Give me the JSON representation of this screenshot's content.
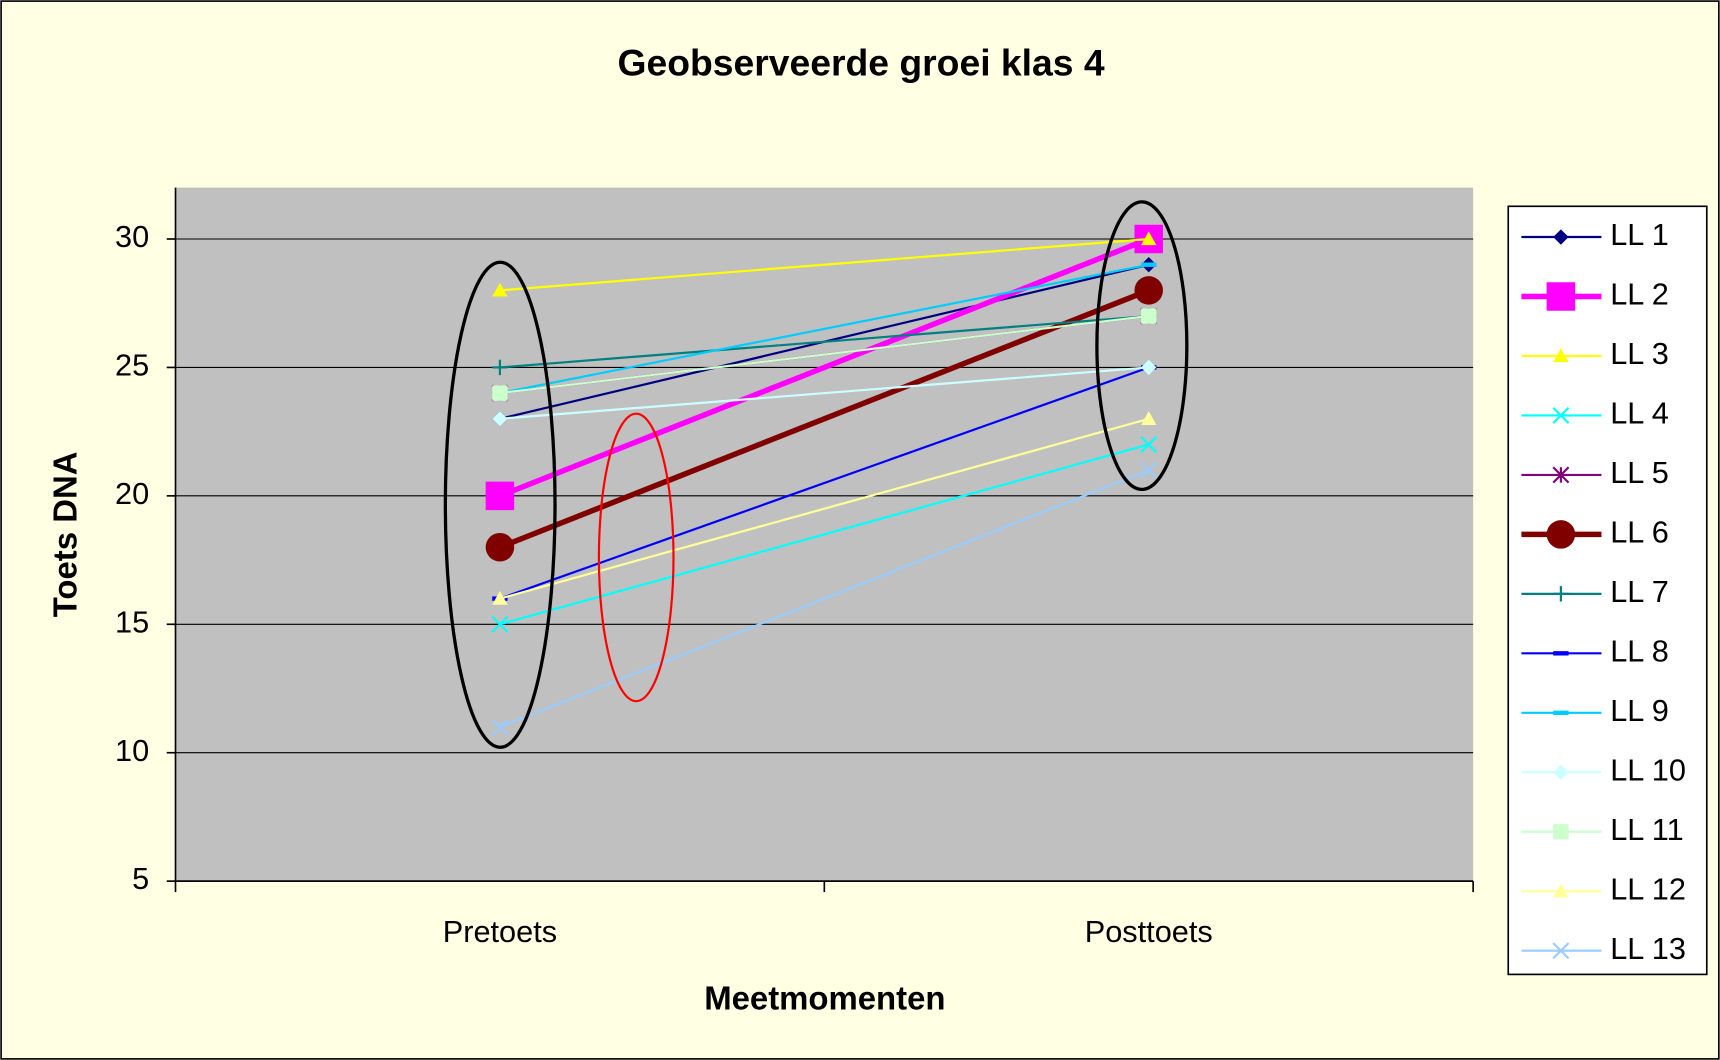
{
  "chart_data": {
    "type": "line",
    "title": "Geobserveerde groei klas 4",
    "x_label": "Meetmomenten",
    "y_label": "Toets DNA",
    "categories": [
      "Pretoets",
      "Posttoets"
    ],
    "ylim": [
      5,
      32
    ],
    "yticks": [
      5,
      10,
      15,
      20,
      25,
      30
    ],
    "grid": true,
    "legend": "right",
    "series": [
      {
        "name": "LL 1",
        "color": "#000080",
        "marker": "diamond",
        "line_width": 2,
        "values": [
          23,
          29
        ]
      },
      {
        "name": "LL 2",
        "color": "#ff00ff",
        "marker": "square",
        "line_width": 5,
        "values": [
          20,
          30
        ]
      },
      {
        "name": "LL 3",
        "color": "#ffff00",
        "marker": "triangle",
        "line_width": 2,
        "values": [
          28,
          30
        ]
      },
      {
        "name": "LL 4",
        "color": "#00ffff",
        "marker": "x",
        "line_width": 2,
        "values": [
          15,
          22
        ]
      },
      {
        "name": "LL 5",
        "color": "#800080",
        "marker": "asterisk",
        "line_width": 2,
        "values": [
          24,
          27
        ]
      },
      {
        "name": "LL 6",
        "color": "#800000",
        "marker": "circle",
        "line_width": 5,
        "values": [
          18,
          28
        ]
      },
      {
        "name": "LL 7",
        "color": "#008080",
        "marker": "plus",
        "line_width": 2,
        "values": [
          25,
          27
        ]
      },
      {
        "name": "LL 8",
        "color": "#0000ff",
        "marker": "dash",
        "line_width": 2,
        "values": [
          16,
          25
        ]
      },
      {
        "name": "LL 9",
        "color": "#00ccff",
        "marker": "dash",
        "line_width": 2,
        "values": [
          24,
          29
        ]
      },
      {
        "name": "LL 10",
        "color": "#ccffff",
        "marker": "diamond",
        "line_width": 2,
        "values": [
          23,
          25
        ]
      },
      {
        "name": "LL 11",
        "color": "#ccffcc",
        "marker": "square",
        "line_width": 2,
        "values": [
          24,
          27
        ]
      },
      {
        "name": "LL 12",
        "color": "#ffff99",
        "marker": "triangle",
        "line_width": 2,
        "values": [
          16,
          23
        ]
      },
      {
        "name": "LL 13",
        "color": "#99ccff",
        "marker": "x",
        "line_width": 2,
        "values": [
          11,
          21
        ]
      }
    ]
  }
}
